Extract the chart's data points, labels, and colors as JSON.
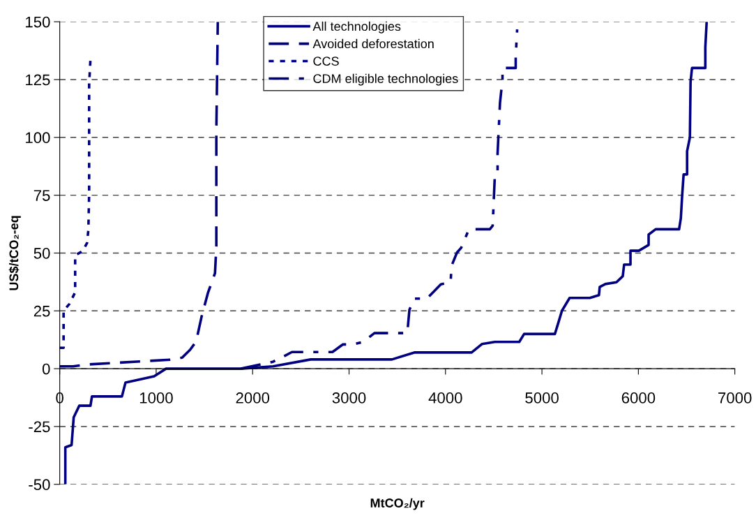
{
  "chart_data": {
    "type": "line",
    "xlabel": "MtCO₂/yr",
    "ylabel": "US$/tCO₂-eq",
    "xlim": [
      0,
      7000
    ],
    "xticks": [
      0,
      1000,
      2000,
      3000,
      4000,
      5000,
      6000,
      7000
    ],
    "ylim": [
      -50,
      150
    ],
    "yticks": [
      -50,
      -25,
      0,
      25,
      50,
      75,
      100,
      125,
      150
    ],
    "grid": "y",
    "legend": "top",
    "marker": "none",
    "series": [
      {
        "name": "All technologies",
        "color": "#000080",
        "line_style": "solid",
        "x": [
          58,
          58,
          123,
          145,
          203,
          319,
          334,
          645,
          682,
          790,
          979,
          1102,
          1878,
          2212,
          2603,
          3445,
          3677,
          4271,
          4380,
          4511,
          4765,
          4815,
          5134,
          5171,
          5207,
          5287,
          5497,
          5591,
          5599,
          5657,
          5773,
          5838,
          5852,
          5918,
          5918,
          6005,
          6106,
          6106,
          6179,
          6422,
          6440,
          6454,
          6469,
          6505,
          6505,
          6534,
          6541,
          6556,
          6694,
          6694,
          6708
        ],
        "values": [
          -50,
          -34,
          -33,
          -21,
          -16,
          -16,
          -12,
          -12,
          -6,
          -5,
          -3.3,
          0,
          0,
          1,
          4,
          4,
          7,
          7,
          10.7,
          11.6,
          11.6,
          15,
          15,
          20,
          25,
          30.6,
          30.6,
          31.8,
          35.3,
          36.6,
          37.4,
          40,
          45,
          45,
          51,
          51,
          53.5,
          58,
          60.3,
          60.3,
          65,
          75,
          84,
          84,
          94,
          100,
          124,
          130,
          130,
          139,
          150
        ]
      },
      {
        "name": "Avoided deforestation",
        "color": "#000080",
        "line_style": "dashed",
        "x": [
          0,
          138,
          283,
          1146,
          1270,
          1352,
          1414,
          1472,
          1537,
          1610,
          1624,
          1624,
          1639
        ],
        "values": [
          1,
          1,
          1.8,
          3.9,
          4.8,
          8.2,
          11.7,
          22.7,
          32.8,
          41.3,
          52.9,
          103,
          150
        ]
      },
      {
        "name": "CCS",
        "color": "#000080",
        "line_style": "dotted",
        "x": [
          0,
          40,
          40,
          100,
          160,
          160,
          236,
          283,
          297,
          305,
          305,
          319
        ],
        "values": [
          9,
          9,
          25,
          28,
          33,
          49,
          50.8,
          54.3,
          60,
          76,
          123,
          134
        ]
      },
      {
        "name": "CDM eligible technologies",
        "color": "#000080",
        "line_style": "dashdot",
        "x": [
          1878,
          2212,
          2335,
          2408,
          2828,
          2937,
          3046,
          3147,
          3263,
          3604,
          3626,
          3677,
          3807,
          3952,
          4054,
          4061,
          4119,
          4163,
          4243,
          4460,
          4489,
          4511,
          4540,
          4540,
          4565,
          4591,
          4591,
          4728,
          4728,
          4743
        ],
        "values": [
          0,
          3,
          5.6,
          7.2,
          7.2,
          10.5,
          10.5,
          11.6,
          15.4,
          15.4,
          25.5,
          30.3,
          30.3,
          36.5,
          37.4,
          44.3,
          50.2,
          52.3,
          60.3,
          60.3,
          61.8,
          83,
          84,
          93,
          115,
          125,
          130,
          130,
          135,
          146.7
        ]
      }
    ]
  }
}
